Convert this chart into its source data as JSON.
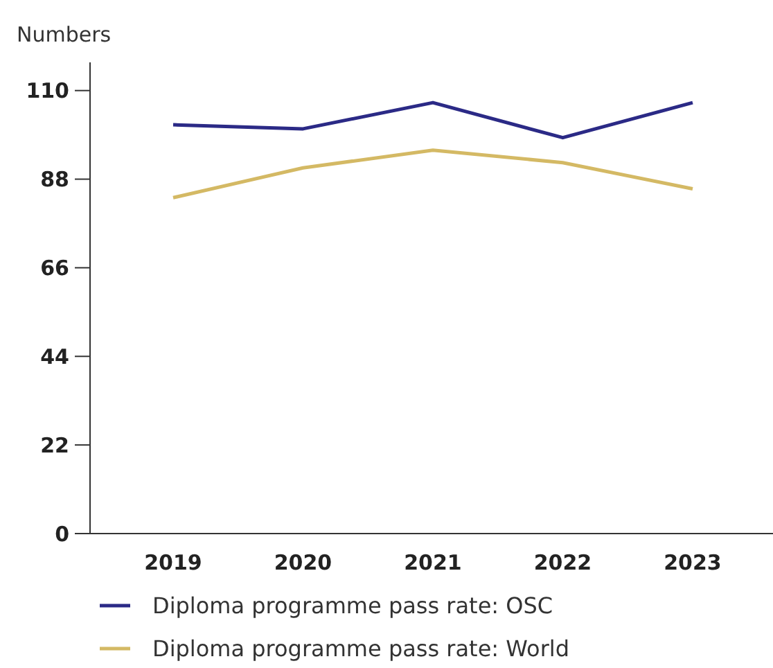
{
  "chart_data": {
    "type": "line",
    "ylabel": "Numbers",
    "categories": [
      "2019",
      "2020",
      "2021",
      "2022",
      "2023"
    ],
    "series": [
      {
        "name": "Diploma programme pass rate: OSC",
        "color": "#2b2a86",
        "values": [
          101.5,
          100.5,
          107,
          98.3,
          107
        ]
      },
      {
        "name": "Diploma programme pass rate: World",
        "color": "#d4b964",
        "values": [
          83.4,
          90.8,
          95.2,
          92.1,
          85.6
        ]
      }
    ],
    "ylim": [
      0,
      117
    ],
    "yticks": [
      0,
      22,
      44,
      66,
      88,
      110
    ],
    "grid": false,
    "legend": "bottom",
    "marker": "none",
    "line_style": "solid"
  }
}
